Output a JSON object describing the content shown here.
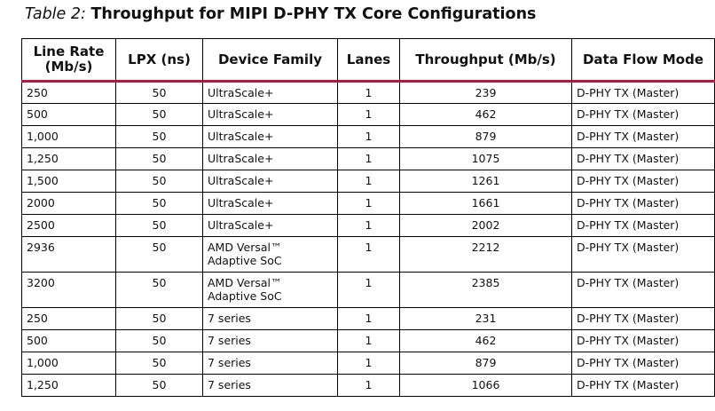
{
  "caption": {
    "label": "Table 2:",
    "title": "Throughput for MIPI D-PHY TX Core Configurations"
  },
  "table": {
    "headers": [
      "Line Rate (Mb/s)",
      "LPX (ns)",
      "Device Family",
      "Lanes",
      "Throughput (Mb/s)",
      "Data Flow Mode"
    ],
    "rows": [
      [
        "250",
        "50",
        "UltraScale+",
        "1",
        "239",
        "D-PHY TX (Master)"
      ],
      [
        "500",
        "50",
        "UltraScale+",
        "1",
        "462",
        "D-PHY TX (Master)"
      ],
      [
        "1,000",
        "50",
        "UltraScale+",
        "1",
        "879",
        "D-PHY TX (Master)"
      ],
      [
        "1,250",
        "50",
        "UltraScale+",
        "1",
        "1075",
        "D-PHY TX (Master)"
      ],
      [
        "1,500",
        "50",
        "UltraScale+",
        "1",
        "1261",
        "D-PHY TX (Master)"
      ],
      [
        "2000",
        "50",
        "UltraScale+",
        "1",
        "1661",
        "D-PHY TX (Master)"
      ],
      [
        "2500",
        "50",
        "UltraScale+",
        "1",
        "2002",
        "D-PHY TX (Master)"
      ],
      [
        "2936",
        "50",
        "AMD Versal™ Adaptive SoC",
        "1",
        "2212",
        "D-PHY TX (Master)"
      ],
      [
        "3200",
        "50",
        "AMD Versal™ Adaptive SoC",
        "1",
        "2385",
        "D-PHY TX (Master)"
      ],
      [
        "250",
        "50",
        "7 series",
        "1",
        "231",
        "D-PHY TX (Master)"
      ],
      [
        "500",
        "50",
        "7 series",
        "1",
        "462",
        "D-PHY TX (Master)"
      ],
      [
        "1,000",
        "50",
        "7 series",
        "1",
        "879",
        "D-PHY TX (Master)"
      ],
      [
        "1,250",
        "50",
        "7 series",
        "1",
        "1066",
        "D-PHY TX (Master)"
      ]
    ]
  },
  "colors": {
    "header_rule": "#b11a3c"
  }
}
